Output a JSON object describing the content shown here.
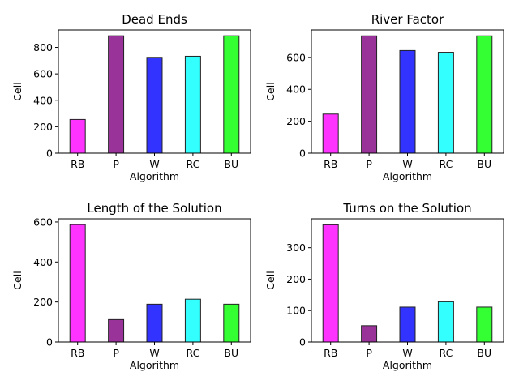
{
  "chart_data": [
    {
      "type": "bar",
      "title": "Dead Ends",
      "xlabel": "Algorithm",
      "ylabel": "Cell",
      "categories": [
        "RB",
        "P",
        "W",
        "RC",
        "BU"
      ],
      "values": [
        255,
        888,
        725,
        733,
        888
      ],
      "ylim": [
        0,
        932
      ],
      "yticks": [
        0,
        200,
        400,
        600,
        800
      ],
      "grid": false
    },
    {
      "type": "bar",
      "title": "River Factor",
      "xlabel": "Algorithm",
      "ylabel": "Cell",
      "categories": [
        "RB",
        "P",
        "W",
        "RC",
        "BU"
      ],
      "values": [
        245,
        735,
        643,
        632,
        735
      ],
      "ylim": [
        0,
        772
      ],
      "yticks": [
        0,
        200,
        400,
        600
      ],
      "grid": false
    },
    {
      "type": "bar",
      "title": "Length of the Solution",
      "xlabel": "Algorithm",
      "ylabel": "Cell",
      "categories": [
        "RB",
        "P",
        "W",
        "RC",
        "BU"
      ],
      "values": [
        587,
        112,
        189,
        214,
        189
      ],
      "ylim": [
        0,
        616
      ],
      "yticks": [
        0,
        200,
        400,
        600
      ],
      "grid": false
    },
    {
      "type": "bar",
      "title": "Turns on the Solution",
      "xlabel": "Algorithm",
      "ylabel": "Cell",
      "categories": [
        "RB",
        "P",
        "W",
        "RC",
        "BU"
      ],
      "values": [
        373,
        52,
        111,
        128,
        111
      ],
      "ylim": [
        0,
        392
      ],
      "yticks": [
        0,
        100,
        200,
        300
      ],
      "grid": false
    }
  ],
  "bar_colors": [
    "#ff33ff",
    "#993399",
    "#3333ff",
    "#33ffff",
    "#33ff33"
  ],
  "bar_edge_color": "#222222"
}
